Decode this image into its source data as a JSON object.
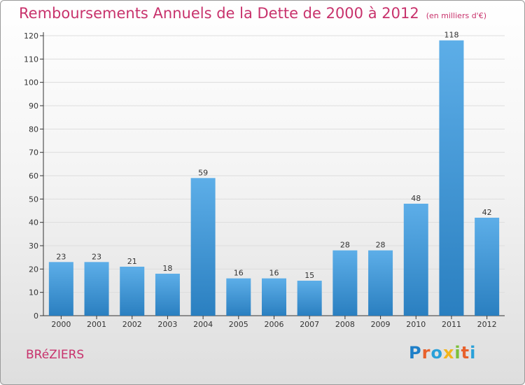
{
  "title": "Remboursements Annuels de la Dette de 2000 à 2012",
  "subtitle": "(en milliers d'€)",
  "place": "BRéZIERS",
  "logo": {
    "text": "Proxiti",
    "letters": [
      {
        "char": "P",
        "color": "#1e7fc8"
      },
      {
        "char": "r",
        "color": "#e8612c"
      },
      {
        "char": "o",
        "color": "#2aa1d9"
      },
      {
        "char": "x",
        "color": "#f2b51c"
      },
      {
        "char": "i",
        "color": "#7bbf3a"
      },
      {
        "char": "t",
        "color": "#e8612c"
      },
      {
        "char": "i",
        "color": "#2aa1d9"
      }
    ]
  },
  "colors": {
    "accent": "#c8326c",
    "bar_top": "#5daee8",
    "bar_bottom": "#2a7fc0",
    "grid": "#dddddd",
    "axis": "#333333"
  },
  "chart_data": {
    "type": "bar",
    "title": "Remboursements Annuels de la Dette de 2000 à 2012",
    "subtitle": "(en milliers d'€)",
    "categories": [
      "2000",
      "2001",
      "2002",
      "2003",
      "2004",
      "2005",
      "2006",
      "2007",
      "2008",
      "2009",
      "2010",
      "2011",
      "2012"
    ],
    "values": [
      23,
      23,
      21,
      18,
      59,
      16,
      16,
      15,
      28,
      28,
      48,
      118,
      42
    ],
    "ylim": [
      0,
      120
    ],
    "yticks": [
      0,
      10,
      20,
      30,
      40,
      50,
      60,
      70,
      80,
      90,
      100,
      110,
      120
    ],
    "grid": true,
    "legend": "none",
    "xlabel": "",
    "ylabel": ""
  }
}
